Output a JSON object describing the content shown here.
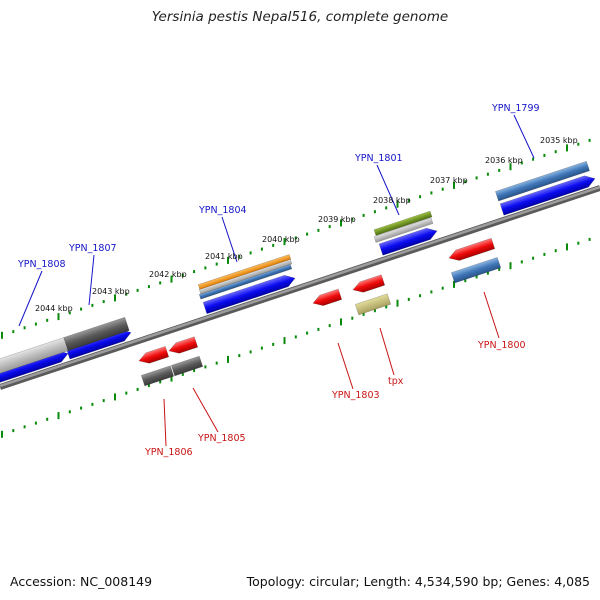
{
  "title": "Yersinia pestis Nepal516, complete genome",
  "footer": {
    "accession": "Accession: NC_008149",
    "stats": "Topology: circular; Length: 4,534,590 bp; Genes: 4,085"
  },
  "tick_labels": [
    "2035 kbp",
    "2036 kbp",
    "2037 kbp",
    "2038 kbp",
    "2039 kbp",
    "2040 kbp",
    "2041 kbp",
    "2042 kbp",
    "2043 kbp",
    "2044 kbp"
  ],
  "gene_labels_forward": [
    "YPN_1799",
    "YPN_1801",
    "YPN_1804",
    "YPN_1807",
    "YPN_1808"
  ],
  "gene_labels_reverse": [
    "YPN_1800",
    "tpx",
    "YPN_1803",
    "YPN_1805",
    "YPN_1806"
  ],
  "colors": {
    "cds_blue": "#0b0bf0",
    "cds_red": "#f00a0a",
    "ticks": "#0a8a0a",
    "backbone": "#7a7a7a",
    "gene_label_blue": "#1414c8",
    "gene_label_red": "#c81414"
  }
}
